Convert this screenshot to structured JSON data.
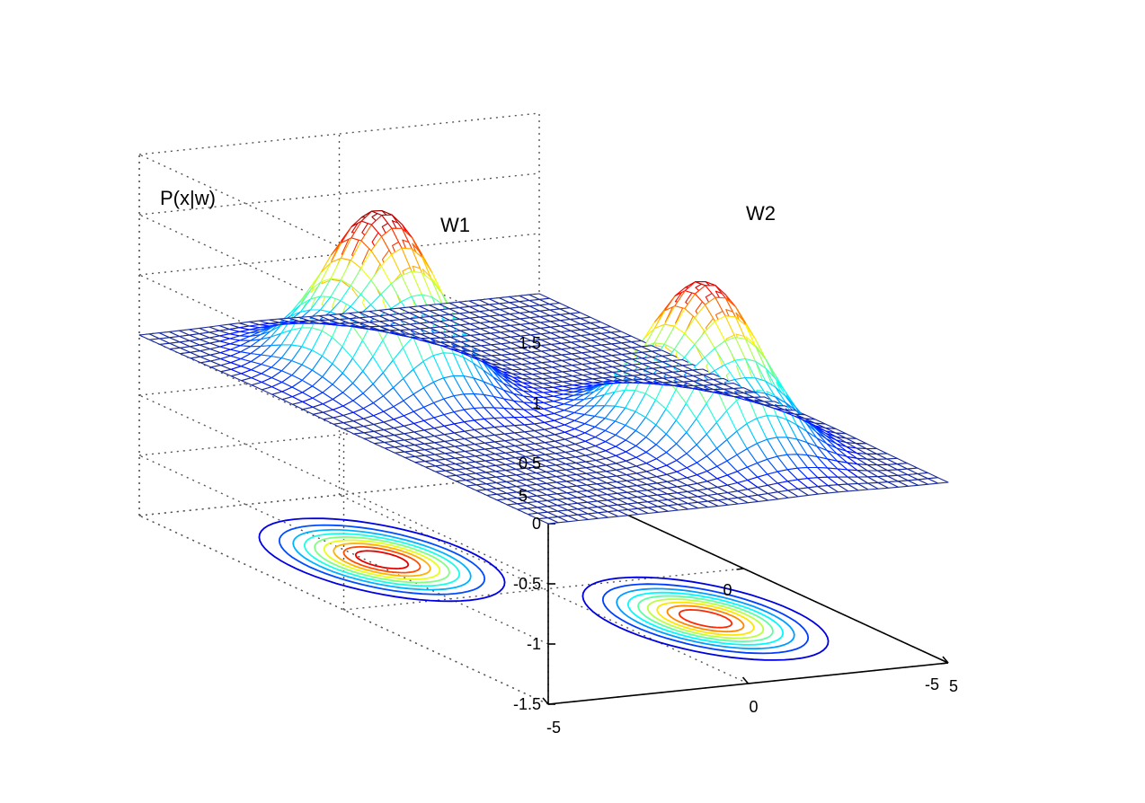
{
  "chart_data": {
    "type": "surface",
    "zlabel": "P(x|w)",
    "annotations": [
      "W1",
      "W2"
    ],
    "zlim": [
      -1.5,
      1.5
    ],
    "xlim": [
      -5,
      5
    ],
    "ylim": [
      -5,
      5
    ],
    "z_ticks": [
      "1.5",
      "1",
      "0.5",
      "0",
      "-0.5",
      "-1",
      "-1.5"
    ],
    "x_ticks": [
      "-5",
      "0",
      "5"
    ],
    "y_ticks": [
      "5",
      "0",
      "-5"
    ],
    "grid": true,
    "colormap": "jet",
    "series": [
      {
        "peak_x": -2,
        "peak_y": 2,
        "peak_height": 1.4
      },
      {
        "peak_x": 2,
        "peak_y": -2,
        "peak_height": 1.3
      }
    ],
    "contour_plane_z": -1.5,
    "contour_levels": 9,
    "colors": {
      "mesh_base": "#1a2a9a",
      "axis": "#000000",
      "grid": "#555555"
    }
  }
}
